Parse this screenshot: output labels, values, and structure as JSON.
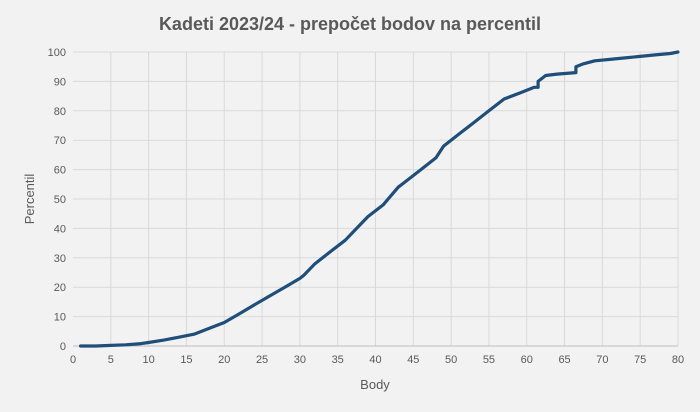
{
  "chart_data": {
    "type": "line",
    "title": "Kadeti 2023/24 - prepočet bodov na percentil",
    "xlabel": "Body",
    "ylabel": "Percentil",
    "xlim": [
      0,
      80
    ],
    "ylim": [
      0,
      100
    ],
    "xticks": [
      0,
      5,
      10,
      15,
      20,
      25,
      30,
      35,
      40,
      45,
      50,
      55,
      60,
      65,
      70,
      75,
      80
    ],
    "yticks": [
      0,
      10,
      20,
      30,
      40,
      50,
      60,
      70,
      80,
      90,
      100
    ],
    "grid": true,
    "legend": "none",
    "color": "#1f4e79",
    "series": [
      {
        "x": [
          1,
          3,
          5,
          7,
          9,
          10,
          12,
          14,
          16,
          18,
          20,
          22,
          24,
          26,
          28,
          30,
          30.5,
          32,
          34,
          36,
          37.5,
          39,
          41,
          43,
          44,
          46,
          48,
          49,
          51,
          53,
          55,
          57,
          59,
          61,
          61.5,
          61.5,
          62.5,
          64,
          66.5,
          66.5,
          67.5,
          69,
          71,
          73,
          75,
          77,
          79,
          80
        ],
        "y": [
          0,
          0,
          0.2,
          0.4,
          0.8,
          1.2,
          2,
          3,
          4,
          6,
          8,
          11,
          14,
          17,
          20,
          23,
          24,
          28,
          32,
          36,
          40,
          44,
          48,
          54,
          56,
          60,
          64,
          68,
          72,
          76,
          80,
          84,
          86,
          88,
          88,
          90,
          92,
          92.5,
          93,
          95,
          96,
          97,
          97.5,
          98,
          98.5,
          99,
          99.5,
          100
        ]
      }
    ]
  }
}
